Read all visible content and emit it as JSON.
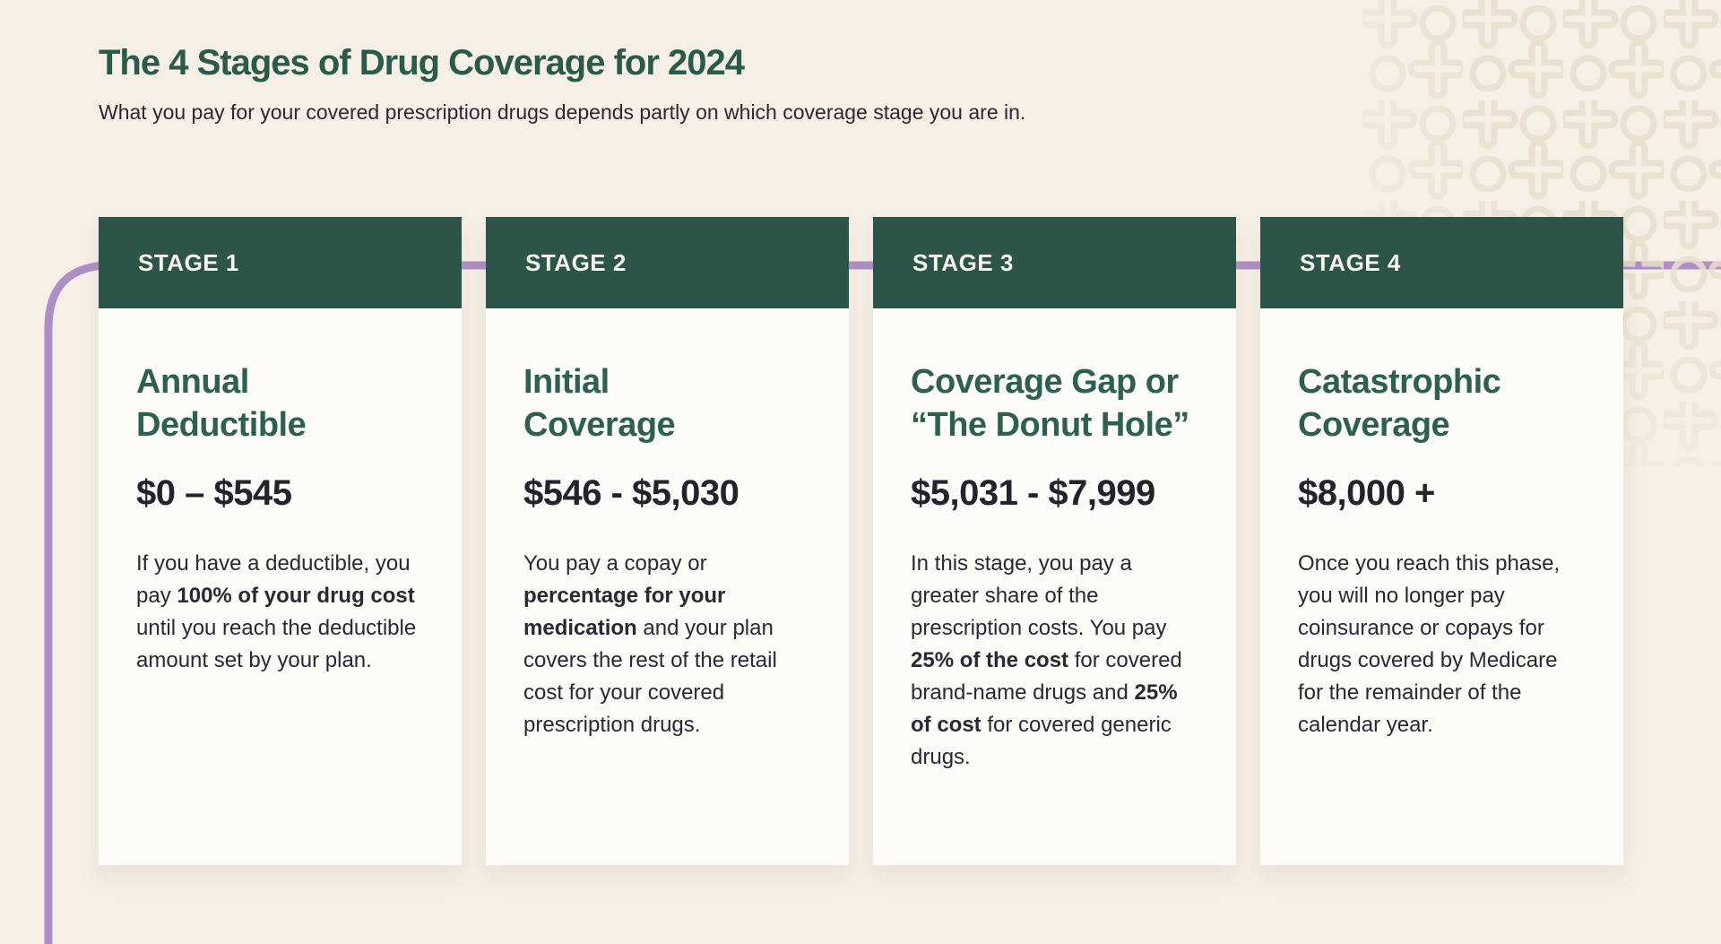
{
  "page": {
    "title": "The 4 Stages of Drug Coverage for 2024",
    "subtitle": "What you pay for your covered prescription drugs depends partly on which coverage stage you are in."
  },
  "colors": {
    "background": "#f5efe6",
    "card_background": "#fdfcf9",
    "header_green": "#2d5448",
    "title_green": "#2c6152",
    "text_dark": "#2b2834",
    "accent_purple": "#af8dc6",
    "pattern_beige": "#eadfcd"
  },
  "stages": [
    {
      "label": "STAGE 1",
      "title": "Annual\nDeductible",
      "range": "$0 – $545",
      "description": [
        {
          "text": "If you have a deductible, you pay ",
          "bold": false
        },
        {
          "text": "100% of your drug cost",
          "bold": true
        },
        {
          "text": " until you reach the deductible amount set by your plan.",
          "bold": false
        }
      ]
    },
    {
      "label": "STAGE 2",
      "title": "Initial\nCoverage",
      "range": "$546 - $5,030",
      "description": [
        {
          "text": "You pay a copay or ",
          "bold": false
        },
        {
          "text": "percentage for your medication",
          "bold": true
        },
        {
          "text": " and your plan covers the rest of the retail cost for your covered prescription drugs.",
          "bold": false
        }
      ]
    },
    {
      "label": "STAGE 3",
      "title": "Coverage Gap or\n“The Donut Hole”",
      "range": "$5,031 - $7,999",
      "description": [
        {
          "text": "In this stage, you pay a greater share of the prescription costs. You pay ",
          "bold": false
        },
        {
          "text": "25% of the cost",
          "bold": true
        },
        {
          "text": " for covered brand-name drugs and ",
          "bold": false
        },
        {
          "text": "25% of cost",
          "bold": true
        },
        {
          "text": " for covered generic drugs.",
          "bold": false
        }
      ]
    },
    {
      "label": "STAGE 4",
      "title": "Catastrophic\nCoverage",
      "range": "$8,000 +",
      "description": [
        {
          "text": "Once you reach this phase, you will no longer pay coinsurance or copays for drugs covered by Medicare for the remainder of the calendar year.",
          "bold": false
        }
      ]
    }
  ]
}
